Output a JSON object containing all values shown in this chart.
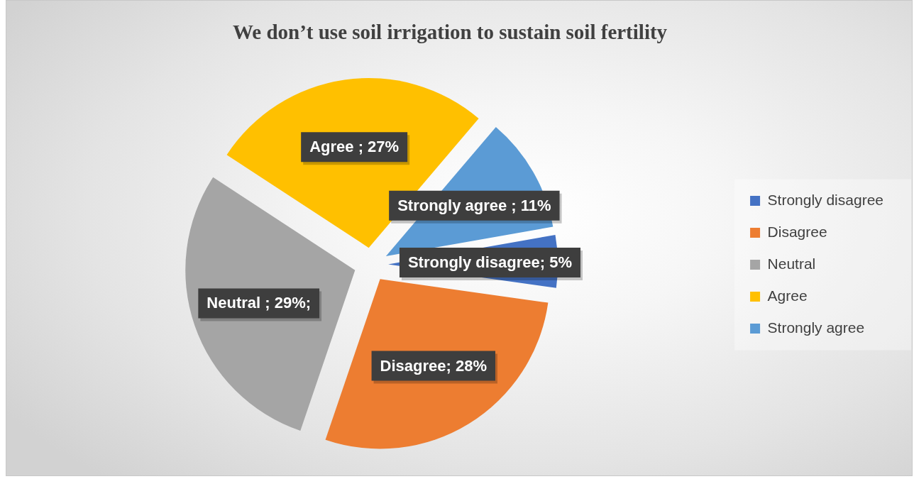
{
  "chart_data": {
    "type": "pie",
    "title": "We don’t use soil irrigation to sustain soil fertility",
    "categories": [
      "Strongly disagree",
      "Disagree",
      "Neutral",
      "Agree",
      "Strongly agree"
    ],
    "values": [
      5,
      28,
      29,
      27,
      11
    ],
    "colors": [
      "#4472c4",
      "#ed7d31",
      "#a5a5a5",
      "#ffc000",
      "#5b9bd5"
    ],
    "value_labels": [
      "Strongly disagree; 5%",
      "Disagree; 28%",
      "Neutral ; 29%;",
      "Agree ; 27%",
      "Strongly agree ; 11%"
    ],
    "legend": "right"
  }
}
